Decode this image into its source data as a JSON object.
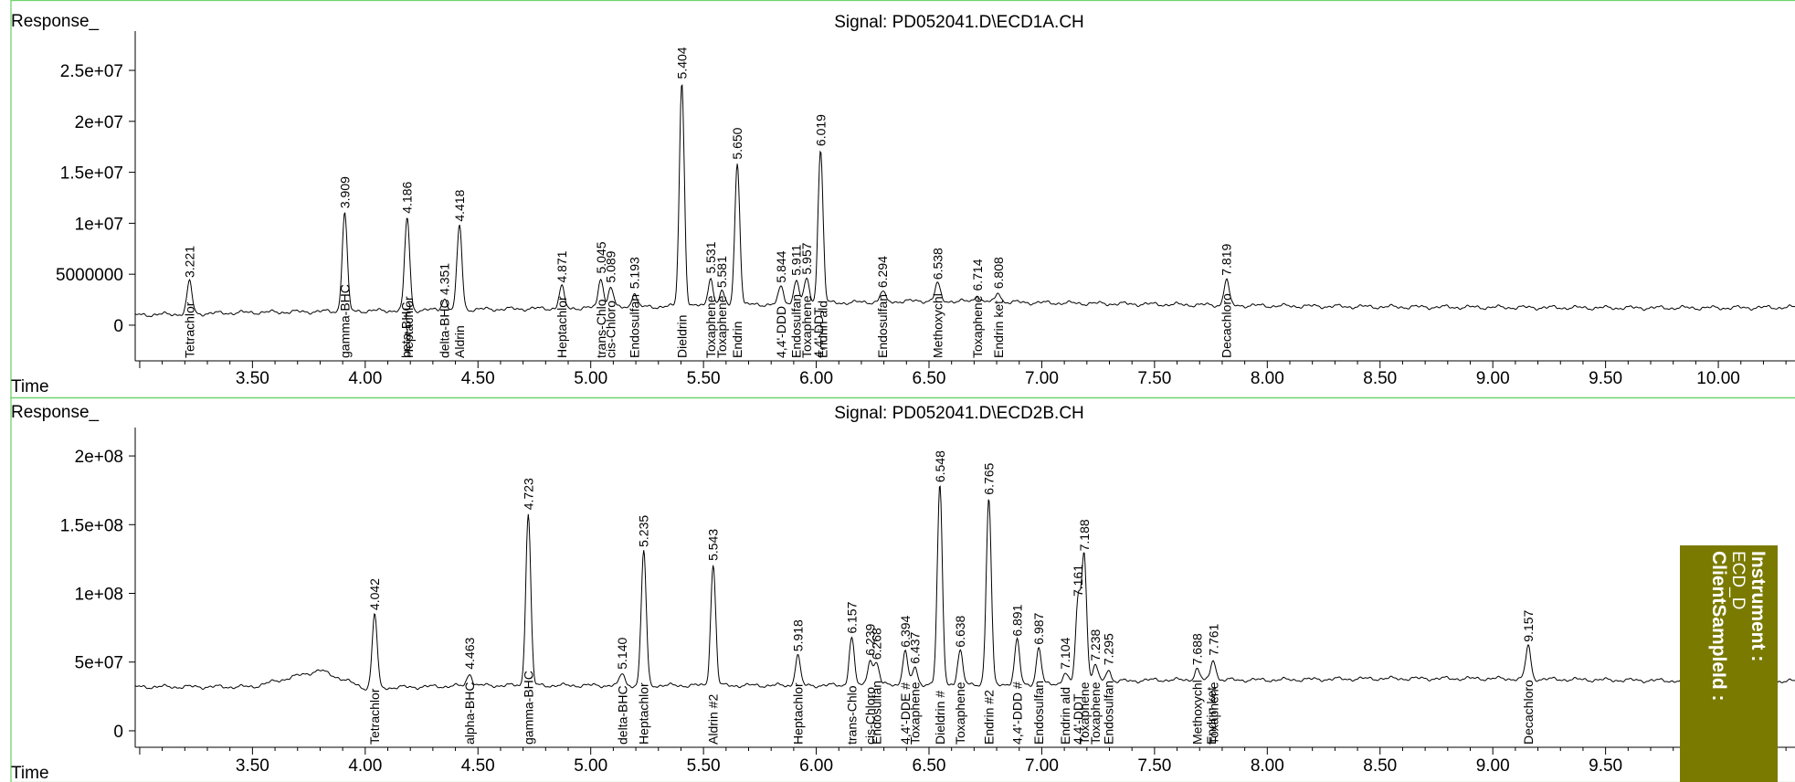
{
  "side_panel": {
    "instrument_label": "Instrument :",
    "instrument_value": "ECD_D",
    "client_label": "ClientSampleId :"
  },
  "chart_data": [
    {
      "type": "line",
      "title": "Signal: PD052041.D\\ECD1A.CH",
      "ylabel": "Response_",
      "xlabel": "Time",
      "xlim": [
        2.98,
        10.34
      ],
      "ylim": [
        -3500000,
        28500000
      ],
      "x_ticks": [
        "3.50",
        "4.00",
        "4.50",
        "5.00",
        "5.50",
        "6.00",
        "6.50",
        "7.00",
        "7.50",
        "8.00",
        "8.50",
        "9.00",
        "9.50",
        "10.00"
      ],
      "y_ticks": [
        {
          "value": 0,
          "label": "0"
        },
        {
          "value": 5000000,
          "label": "5000000"
        },
        {
          "value": 10000000,
          "label": "1e+07"
        },
        {
          "value": 15000000,
          "label": "1.5e+07"
        },
        {
          "value": 20000000,
          "label": "2e+07"
        },
        {
          "value": 25000000,
          "label": "2.5e+07"
        }
      ],
      "baseline": [
        [
          2.98,
          1000000
        ],
        [
          3.5,
          1250000
        ],
        [
          4.0,
          1400000
        ],
        [
          4.5,
          1550000
        ],
        [
          5.0,
          1700000
        ],
        [
          5.5,
          1900000
        ],
        [
          6.0,
          2150000
        ],
        [
          6.5,
          2400000
        ],
        [
          7.0,
          2200000
        ],
        [
          7.5,
          2050000
        ],
        [
          8.0,
          1900000
        ],
        [
          8.5,
          1800000
        ],
        [
          9.0,
          1750000
        ],
        [
          9.5,
          1700000
        ],
        [
          10.0,
          1700000
        ],
        [
          10.34,
          1750000
        ]
      ],
      "peaks": [
        {
          "x": 3.221,
          "y": 4300000,
          "label": "3.221"
        },
        {
          "x": 3.909,
          "y": 11100000,
          "label": "3.909"
        },
        {
          "x": 4.186,
          "y": 10600000,
          "label": "4.186"
        },
        {
          "x": 4.351,
          "y": 2600000,
          "label": "4.351"
        },
        {
          "x": 4.418,
          "y": 9800000,
          "label": "4.418"
        },
        {
          "x": 4.871,
          "y": 3800000,
          "label": "4.871"
        },
        {
          "x": 5.045,
          "y": 4700000,
          "label": "5.045"
        },
        {
          "x": 5.089,
          "y": 3800000,
          "label": "5.089"
        },
        {
          "x": 5.193,
          "y": 3200000,
          "label": "5.193"
        },
        {
          "x": 5.404,
          "y": 23800000,
          "label": "5.404"
        },
        {
          "x": 5.531,
          "y": 4700000,
          "label": "5.531"
        },
        {
          "x": 5.581,
          "y": 3300000,
          "label": "5.581"
        },
        {
          "x": 5.65,
          "y": 15900000,
          "label": "5.650"
        },
        {
          "x": 5.844,
          "y": 3800000,
          "label": "5.844"
        },
        {
          "x": 5.911,
          "y": 4500000,
          "label": "5.911"
        },
        {
          "x": 5.957,
          "y": 4600000,
          "label": "5.957"
        },
        {
          "x": 6.019,
          "y": 17200000,
          "label": "6.019"
        },
        {
          "x": 6.294,
          "y": 3300000,
          "label": "6.294"
        },
        {
          "x": 6.538,
          "y": 4100000,
          "label": "6.538"
        },
        {
          "x": 6.714,
          "y": 3000000,
          "label": "6.714"
        },
        {
          "x": 6.808,
          "y": 3200000,
          "label": "6.808"
        },
        {
          "x": 7.819,
          "y": 4500000,
          "label": "7.819"
        }
      ],
      "compounds": [
        {
          "x": 3.221,
          "name": "Tetrachlor"
        },
        {
          "x": 3.909,
          "name": "gamma-BHC"
        },
        {
          "x": 4.181,
          "name": "beta-BHC"
        },
        {
          "x": 4.191,
          "name": "Heptachlor"
        },
        {
          "x": 4.351,
          "name": "delta-BHC"
        },
        {
          "x": 4.418,
          "name": "Aldrin"
        },
        {
          "x": 4.871,
          "name": "Heptachlor"
        },
        {
          "x": 5.045,
          "name": "trans-Chlo"
        },
        {
          "x": 5.089,
          "name": "cis-Chloro"
        },
        {
          "x": 5.193,
          "name": "Endosulfan"
        },
        {
          "x": 5.404,
          "name": "Dieldrin"
        },
        {
          "x": 5.531,
          "name": "Toxaphene"
        },
        {
          "x": 5.581,
          "name": "Toxaphene"
        },
        {
          "x": 5.65,
          "name": "Endrin"
        },
        {
          "x": 5.844,
          "name": "4,4'-DDD"
        },
        {
          "x": 5.911,
          "name": "Endosulfan"
        },
        {
          "x": 5.957,
          "name": "Toxaphene"
        },
        {
          "x": 6.009,
          "name": "4,4'-DDT"
        },
        {
          "x": 6.029,
          "name": "Endrin ald"
        },
        {
          "x": 6.294,
          "name": "Endosulfan"
        },
        {
          "x": 6.538,
          "name": "Methoxychl"
        },
        {
          "x": 6.714,
          "name": "Toxaphene"
        },
        {
          "x": 6.808,
          "name": "Endrin ket"
        },
        {
          "x": 7.819,
          "name": "Decachloro"
        }
      ]
    },
    {
      "type": "line",
      "title": "Signal: PD052041.D\\ECD2B.CH",
      "ylabel": "Response_",
      "xlabel": "Time",
      "xlim": [
        2.98,
        10.34
      ],
      "ylim": [
        -12000000,
        218000000
      ],
      "x_ticks": [
        "3.50",
        "4.00",
        "4.50",
        "5.00",
        "5.50",
        "6.00",
        "6.50",
        "7.00",
        "7.50",
        "8.00",
        "8.50",
        "9.00",
        "9.50"
      ],
      "y_ticks": [
        {
          "value": 0,
          "label": "0"
        },
        {
          "value": 50000000,
          "label": "5e+07"
        },
        {
          "value": 100000000,
          "label": "1e+08"
        },
        {
          "value": 150000000,
          "label": "1.5e+08"
        },
        {
          "value": 200000000,
          "label": "2e+08"
        }
      ],
      "baseline": [
        [
          2.98,
          32000000
        ],
        [
          3.5,
          32000000
        ],
        [
          3.8,
          44000000
        ],
        [
          4.0,
          31000000
        ],
        [
          4.5,
          33000000
        ],
        [
          5.0,
          33000000
        ],
        [
          5.5,
          33000000
        ],
        [
          6.0,
          33000000
        ],
        [
          6.5,
          34000000
        ],
        [
          7.0,
          34000000
        ],
        [
          7.5,
          37000000
        ],
        [
          8.0,
          37000000
        ],
        [
          8.5,
          38000000
        ],
        [
          9.0,
          38000000
        ],
        [
          9.5,
          37000000
        ],
        [
          10.0,
          36000000
        ],
        [
          10.34,
          36000000
        ]
      ],
      "peaks": [
        {
          "x": 4.042,
          "y": 85000000,
          "label": "4.042"
        },
        {
          "x": 4.463,
          "y": 42000000,
          "label": "4.463"
        },
        {
          "x": 4.723,
          "y": 158000000,
          "label": "4.723"
        },
        {
          "x": 5.14,
          "y": 42000000,
          "label": "5.140"
        },
        {
          "x": 5.235,
          "y": 131000000,
          "label": "5.235"
        },
        {
          "x": 5.543,
          "y": 121000000,
          "label": "5.543"
        },
        {
          "x": 5.918,
          "y": 55000000,
          "label": "5.918"
        },
        {
          "x": 6.157,
          "y": 68000000,
          "label": "6.157"
        },
        {
          "x": 6.239,
          "y": 52000000,
          "label": "6.239"
        },
        {
          "x": 6.268,
          "y": 49000000,
          "label": "6.268"
        },
        {
          "x": 6.394,
          "y": 58000000,
          "label": "6.394"
        },
        {
          "x": 6.437,
          "y": 46000000,
          "label": "6.437"
        },
        {
          "x": 6.548,
          "y": 178000000,
          "label": "6.548"
        },
        {
          "x": 6.638,
          "y": 58000000,
          "label": "6.638"
        },
        {
          "x": 6.765,
          "y": 169000000,
          "label": "6.765"
        },
        {
          "x": 6.891,
          "y": 66000000,
          "label": "6.891"
        },
        {
          "x": 6.987,
          "y": 60000000,
          "label": "6.987"
        },
        {
          "x": 7.104,
          "y": 42000000,
          "label": "7.104"
        },
        {
          "x": 7.161,
          "y": 95000000,
          "label": "7.161"
        },
        {
          "x": 7.188,
          "y": 128000000,
          "label": "7.188"
        },
        {
          "x": 7.238,
          "y": 48000000,
          "label": "7.238"
        },
        {
          "x": 7.295,
          "y": 45000000,
          "label": "7.295"
        },
        {
          "x": 7.688,
          "y": 45000000,
          "label": "7.688"
        },
        {
          "x": 7.761,
          "y": 52000000,
          "label": "7.761"
        },
        {
          "x": 9.157,
          "y": 62000000,
          "label": "9.157"
        }
      ],
      "compounds": [
        {
          "x": 4.042,
          "name": "Tetrachlor"
        },
        {
          "x": 4.463,
          "name": "alpha-BHC"
        },
        {
          "x": 4.723,
          "name": "gamma-BHC"
        },
        {
          "x": 5.14,
          "name": "delta-BHC"
        },
        {
          "x": 5.235,
          "name": "Heptachlor"
        },
        {
          "x": 5.543,
          "name": "Aldrin #2"
        },
        {
          "x": 5.918,
          "name": "Heptachlor"
        },
        {
          "x": 6.157,
          "name": "trans-Chlo"
        },
        {
          "x": 6.239,
          "name": "cis-Chloro"
        },
        {
          "x": 6.268,
          "name": "Endosulfan"
        },
        {
          "x": 6.394,
          "name": "4,4'-DDE #"
        },
        {
          "x": 6.437,
          "name": "Toxaphene"
        },
        {
          "x": 6.548,
          "name": "Dieldrin #"
        },
        {
          "x": 6.638,
          "name": "Toxaphene"
        },
        {
          "x": 6.765,
          "name": "Endrin #2"
        },
        {
          "x": 6.891,
          "name": "4,4'-DDD #"
        },
        {
          "x": 6.987,
          "name": "Endosulfan"
        },
        {
          "x": 7.104,
          "name": "Endrin ald"
        },
        {
          "x": 7.161,
          "name": "4,4'-DDT"
        },
        {
          "x": 7.188,
          "name": "Toxaphene"
        },
        {
          "x": 7.238,
          "name": "Toxaphene"
        },
        {
          "x": 7.295,
          "name": "Endosulfan"
        },
        {
          "x": 7.688,
          "name": "Methoxychl"
        },
        {
          "x": 7.751,
          "name": "Endrin ket"
        },
        {
          "x": 7.761,
          "name": "Toxaphene"
        },
        {
          "x": 9.157,
          "name": "Decachloro"
        }
      ]
    }
  ]
}
